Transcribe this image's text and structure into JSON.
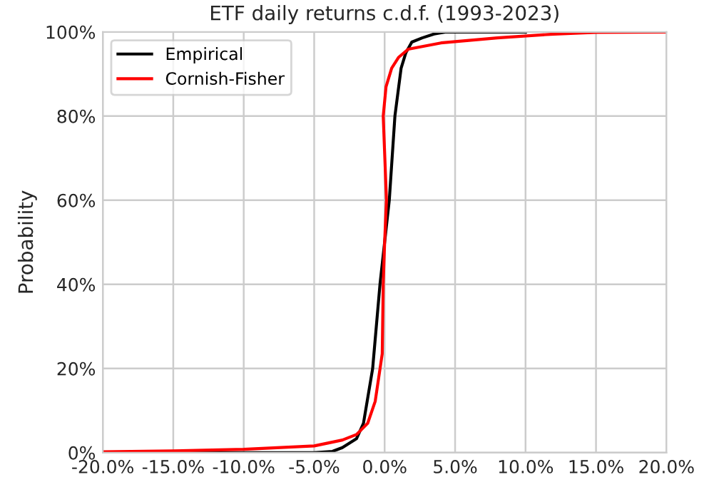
{
  "chart_data": {
    "type": "line",
    "title": "ETF daily returns c.d.f. (1993-2023)",
    "ylabel": "Probability",
    "series": [
      {
        "name": "Empirical",
        "color": "#000000",
        "x": [
          -20,
          -10,
          -5,
          -3.7,
          -3,
          -2,
          -1.5,
          -0.85,
          -0.33,
          0,
          0.33,
          0.73,
          1.17,
          1.5,
          1.93,
          2.67,
          3.5,
          4.3,
          10
        ],
        "values": [
          0,
          0,
          0,
          0.3,
          1.2,
          3.3,
          7,
          20,
          40,
          50,
          60,
          80,
          91.4,
          95,
          97.6,
          98.6,
          99.5,
          100,
          100
        ]
      },
      {
        "name": "Cornish-Fisher",
        "color": "#ff0000",
        "x": [
          -20,
          -15,
          -10,
          -5,
          -3,
          -2,
          -1.2,
          -0.67,
          -0.17,
          -0.1,
          0,
          0.13,
          -0.1,
          0.1,
          0.5,
          1.0,
          1.67,
          4,
          8,
          12,
          15,
          20
        ],
        "values": [
          0.2,
          0.4,
          0.8,
          1.6,
          3,
          4.3,
          7,
          12.2,
          23.5,
          40,
          50,
          60,
          80,
          87,
          91.4,
          94,
          95.9,
          97.4,
          98.6,
          99.5,
          99.9,
          100
        ]
      }
    ],
    "xlim": [
      -20,
      20
    ],
    "ylim": [
      0,
      100
    ],
    "xticks": [
      {
        "value": -20,
        "label": "-20.0%"
      },
      {
        "value": -15,
        "label": "-15.0%"
      },
      {
        "value": -10,
        "label": "-10.0%"
      },
      {
        "value": -5,
        "label": "-5.0%"
      },
      {
        "value": 0,
        "label": "0.0%"
      },
      {
        "value": 5,
        "label": "5.0%"
      },
      {
        "value": 10,
        "label": "10.0%"
      },
      {
        "value": 15,
        "label": "15.0%"
      },
      {
        "value": 20,
        "label": "20.0%"
      }
    ],
    "yticks": [
      {
        "value": 0,
        "label": "0%"
      },
      {
        "value": 20,
        "label": "20%"
      },
      {
        "value": 40,
        "label": "40%"
      },
      {
        "value": 60,
        "label": "60%"
      },
      {
        "value": 80,
        "label": "80%"
      },
      {
        "value": 100,
        "label": "100%"
      }
    ],
    "grid": true,
    "legend": "top left"
  }
}
